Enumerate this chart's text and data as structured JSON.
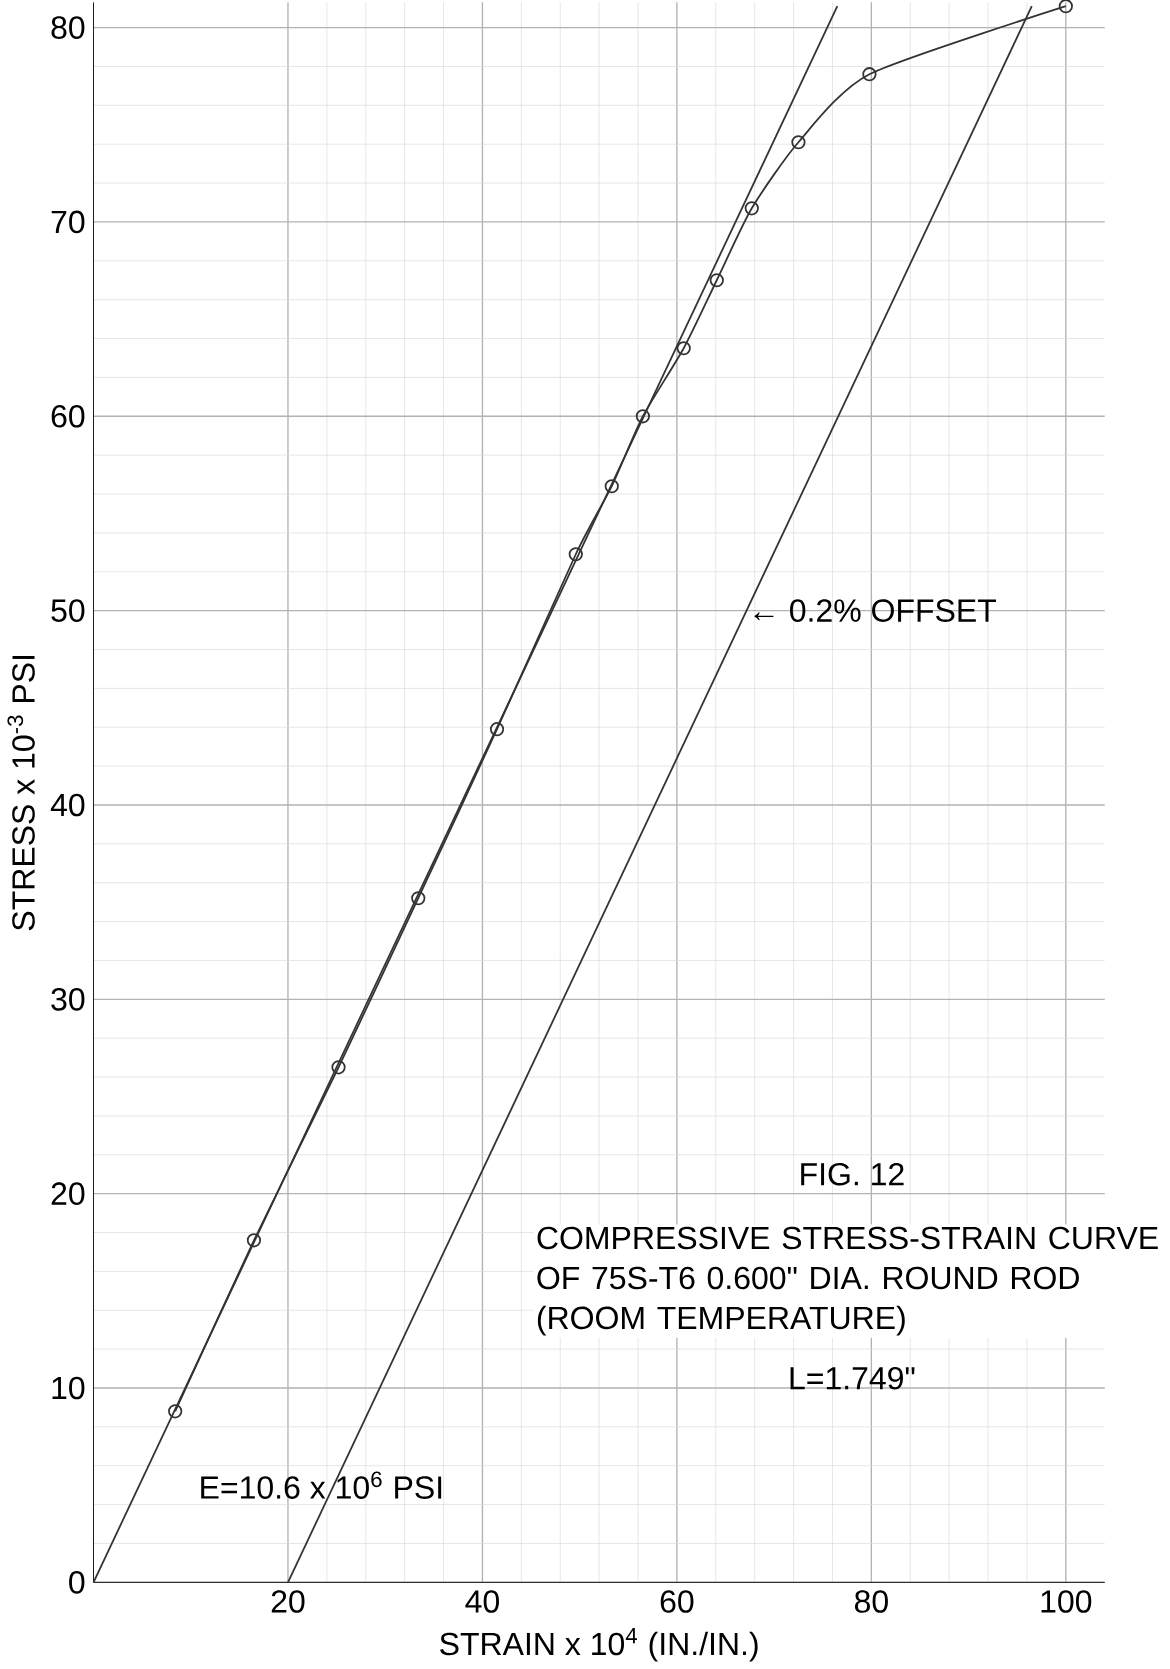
{
  "chart_data": {
    "type": "line",
    "title": "FIG. 12",
    "subtitle": "COMPRESSIVE STRESS-STRAIN CURVE OF 75S-T6 0.600\" DIA. ROUND ROD (ROOM TEMPERATURE)",
    "xlabel": "STRAIN x 10$^{4}$ (IN./IN.)",
    "ylabel": "STRESS x 10$^{-3}$ PSI",
    "xlim": [
      0,
      104
    ],
    "ylim": [
      0,
      81.3
    ],
    "xticks": [
      20,
      40,
      60,
      80,
      100
    ],
    "yticks": [
      0,
      10,
      20,
      30,
      40,
      50,
      60,
      70,
      80
    ],
    "grid": true,
    "series": [
      {
        "color": "#333333",
        "marker": "circle",
        "line_style": "solid",
        "x": [
          8.4,
          16.5,
          25.2,
          33.4,
          41.5,
          49.6,
          53.3,
          56.5,
          60.7,
          64.1,
          67.7,
          72.5,
          79.8,
          100
        ],
        "values": [
          8.8,
          17.6,
          26.5,
          35.2,
          43.9,
          52.9,
          56.4,
          60.0,
          63.5,
          67.0,
          70.7,
          74.1,
          77.6,
          81.1
        ]
      },
      {
        "color": "#333333",
        "marker": "none",
        "line_style": "solid",
        "x": [
          0,
          76.5
        ],
        "values": [
          0,
          81.1
        ]
      },
      {
        "color": "#333333",
        "marker": "none",
        "line_style": "solid",
        "x": [
          20,
          96.5
        ],
        "values": [
          0,
          81.1
        ]
      }
    ],
    "annotations": [
      {
        "text": "← 0.2% OFFSET",
        "x": 66.5,
        "y": 50
      },
      "E=10.6 x 10$^{6}$ PSI",
      "L=1.749\""
    ]
  }
}
